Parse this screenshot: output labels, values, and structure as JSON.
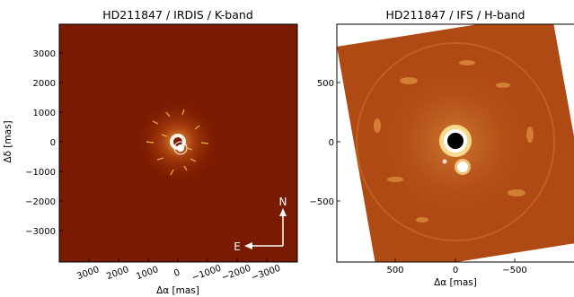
{
  "left_panel": {
    "title": "HD211847 / IRDIS / K-band",
    "ylabel": "Δδ [mas]",
    "xlabel": "Δα [mas]",
    "yticks": [
      "3000",
      "2000",
      "1000",
      "0",
      "−1000",
      "−2000",
      "−3000"
    ],
    "xticks": [
      "3000",
      "2000",
      "1000",
      "0",
      "−1000",
      "−2000",
      "−3000"
    ],
    "compass_north": "N",
    "compass_east": "E"
  },
  "right_panel": {
    "title": "HD211847 / IFS / H-band",
    "xlabel": "Δα [mas]",
    "yticks": [
      "500",
      "0",
      "−500"
    ],
    "xticks": [
      "500",
      "0",
      "−500"
    ]
  },
  "colors": {
    "irdis_background": "#7a1a00",
    "ifs_background": "#b04a14",
    "companion": "#ffffff"
  }
}
